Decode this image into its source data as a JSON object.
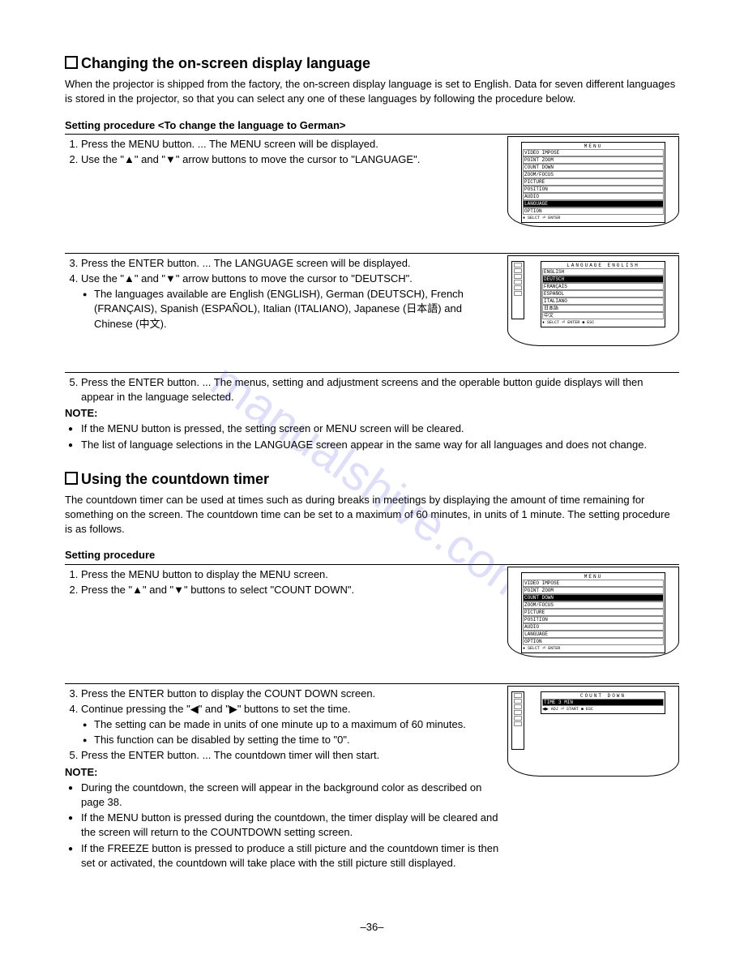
{
  "watermark": "manualshive.com",
  "page_number": "–36–",
  "section1": {
    "title": "Changing the on-screen display language",
    "intro": "When the projector is shipped from the factory, the on-screen display language is set to English. Data for seven different languages is stored in the projector, so that you can select any one of these languages by following the procedure below.",
    "sub1": "Setting procedure <To change the language to German>",
    "steps_a": {
      "s1": "Press the MENU button. ... The MENU screen will be displayed.",
      "s2": "Use the \"▲\" and \"▼\" arrow buttons to move the cursor to \"LANGUAGE\"."
    },
    "steps_b": {
      "s3": "Press the ENTER button. ... The LANGUAGE screen will be displayed.",
      "s4": "Use the \"▲\" and \"▼\" arrow buttons to move the cursor to \"DEUTSCH\".",
      "s4_bullet": "The languages available are English (ENGLISH), German (DEUTSCH), French (FRANÇAIS), Spanish (ESPAÑOL), Italian (ITALIANO), Japanese (日本語) and Chinese (中文)."
    },
    "steps_c": {
      "s5": "Press the ENTER button. ... The menus, setting and adjustment screens and the operable button guide displays will then appear in the language selected."
    },
    "note_label": "NOTE:",
    "notes": {
      "n1": "If the MENU button is pressed, the setting screen or MENU screen will be cleared.",
      "n2": "The list of language selections in the LANGUAGE screen appear in the same way for all languages and does not change."
    },
    "osd1": {
      "title": "MENU",
      "items": [
        "VIDEO IMPOSE",
        "POINT ZOOM",
        "COUNT DOWN",
        "ZOOM/FOCUS",
        "PICTURE",
        "POSITION",
        "AUDIO",
        "LANGUAGE",
        "OPTION"
      ],
      "hl_index": 7,
      "footer": "♦ SELCT ⏎ ENTER"
    },
    "osd2": {
      "title": "LANGUAGE        ENGLISH",
      "items": [
        "ENGLISH",
        "DEUTSCH",
        "FRANÇAIS",
        "ESPAÑOL",
        "ITALIANO",
        "日本語",
        "中文"
      ],
      "hl_index": 1,
      "footer": "♦ SELCT ⏎ ENTER ■ ESC"
    }
  },
  "section2": {
    "title": "Using the countdown timer",
    "intro": "The countdown timer can be used at times such as during breaks in meetings by displaying the amount of time remaining for something on the screen. The countdown time can be set to a maximum of 60 minutes, in units of 1 minute. The setting procedure is as follows.",
    "sub1": "Setting procedure",
    "steps_a": {
      "s1": "Press the MENU button to display the MENU screen.",
      "s2": "Press the \"▲\" and \"▼\" buttons to select \"COUNT DOWN\"."
    },
    "steps_b": {
      "s3": "Press the ENTER button to display the COUNT DOWN screen.",
      "s4": "Continue pressing the \"◀\" and \"▶\" buttons to set the time.",
      "s4_b1": "The setting can be made in units of one minute up to a maximum of 60 minutes.",
      "s4_b2": "This function can be disabled by setting the time to \"0\".",
      "s5": "Press the ENTER button. ... The countdown timer will then start."
    },
    "note_label": "NOTE:",
    "notes": {
      "n1": "During the countdown, the screen will appear in the background color as described on page 38.",
      "n2": "If the MENU button is pressed during the countdown, the timer display will be cleared and the screen will return to the COUNTDOWN setting screen.",
      "n3": "If the FREEZE button is pressed to produce a still picture and the countdown timer is then set or activated, the countdown will take place with the still picture still displayed."
    },
    "osd1": {
      "title": "MENU",
      "items": [
        "VIDEO IMPOSE",
        "POINT ZOOM",
        "COUNT DOWN",
        "ZOOM/FOCUS",
        "PICTURE",
        "POSITION",
        "AUDIO",
        "LANGUAGE",
        "OPTION"
      ],
      "hl_index": 2,
      "footer": "♦ SELCT ⏎ ENTER"
    },
    "osd2": {
      "title": "COUNT DOWN",
      "line": "TIME      3 MIN",
      "footer": "◀▶ ADJ  ⏎ START  ■ ESC"
    }
  }
}
